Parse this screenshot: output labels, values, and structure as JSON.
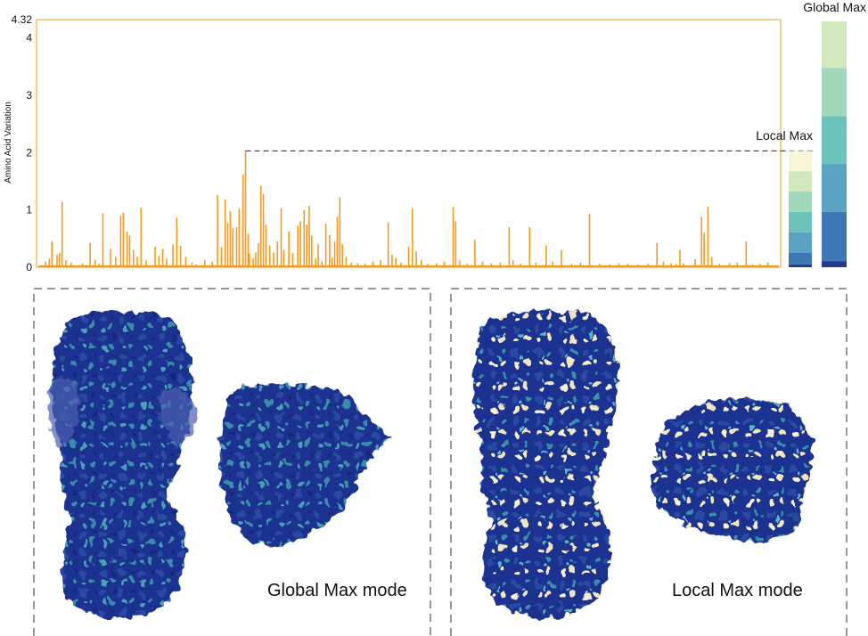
{
  "chart_data": {
    "type": "bar",
    "title": "",
    "xlabel": "",
    "ylabel": "Amino Acid Variation",
    "ylim": [
      0,
      4.32
    ],
    "yticks": [
      "0",
      "1",
      "2",
      "3",
      "4",
      "4.32"
    ],
    "bar_color": "#f39a1f",
    "frame_color": "#f39a1f",
    "local_max_value": 2.03,
    "bars": [
      {
        "x": 5,
        "y": 0.1
      },
      {
        "x": 8,
        "y": 0.15
      },
      {
        "x": 10,
        "y": 0.46
      },
      {
        "x": 14,
        "y": 0.22
      },
      {
        "x": 16,
        "y": 0.25
      },
      {
        "x": 18,
        "y": 1.14
      },
      {
        "x": 21,
        "y": 0.12
      },
      {
        "x": 25,
        "y": 0.08
      },
      {
        "x": 34,
        "y": 0.07
      },
      {
        "x": 40,
        "y": 0.42
      },
      {
        "x": 44,
        "y": 0.13
      },
      {
        "x": 47,
        "y": 0.06
      },
      {
        "x": 50,
        "y": 0.94
      },
      {
        "x": 56,
        "y": 0.32
      },
      {
        "x": 60,
        "y": 0.18
      },
      {
        "x": 64,
        "y": 0.9
      },
      {
        "x": 66,
        "y": 0.95
      },
      {
        "x": 69,
        "y": 0.62
      },
      {
        "x": 71,
        "y": 0.55
      },
      {
        "x": 74,
        "y": 0.3
      },
      {
        "x": 77,
        "y": 0.18
      },
      {
        "x": 80,
        "y": 1.04
      },
      {
        "x": 84,
        "y": 0.12
      },
      {
        "x": 91,
        "y": 0.36
      },
      {
        "x": 94,
        "y": 0.2
      },
      {
        "x": 97,
        "y": 0.32
      },
      {
        "x": 100,
        "y": 0.15
      },
      {
        "x": 105,
        "y": 0.4
      },
      {
        "x": 108,
        "y": 0.86
      },
      {
        "x": 111,
        "y": 0.37
      },
      {
        "x": 115,
        "y": 0.18
      },
      {
        "x": 120,
        "y": 0.08
      },
      {
        "x": 123,
        "y": 0.05
      },
      {
        "x": 130,
        "y": 0.12
      },
      {
        "x": 136,
        "y": 0.1
      },
      {
        "x": 140,
        "y": 1.26
      },
      {
        "x": 143,
        "y": 0.35
      },
      {
        "x": 146,
        "y": 1.18
      },
      {
        "x": 148,
        "y": 0.78
      },
      {
        "x": 150,
        "y": 0.98
      },
      {
        "x": 152,
        "y": 0.68
      },
      {
        "x": 155,
        "y": 0.7
      },
      {
        "x": 157,
        "y": 1.02
      },
      {
        "x": 160,
        "y": 1.62
      },
      {
        "x": 162,
        "y": 2.03
      },
      {
        "x": 164,
        "y": 0.58
      },
      {
        "x": 165,
        "y": 0.24
      },
      {
        "x": 168,
        "y": 0.16
      },
      {
        "x": 170,
        "y": 0.26
      },
      {
        "x": 172,
        "y": 0.42
      },
      {
        "x": 174,
        "y": 1.42
      },
      {
        "x": 176,
        "y": 1.28
      },
      {
        "x": 178,
        "y": 0.74
      },
      {
        "x": 181,
        "y": 0.38
      },
      {
        "x": 184,
        "y": 0.26
      },
      {
        "x": 187,
        "y": 0.45
      },
      {
        "x": 190,
        "y": 1.03
      },
      {
        "x": 192,
        "y": 0.3
      },
      {
        "x": 196,
        "y": 0.62
      },
      {
        "x": 199,
        "y": 0.25
      },
      {
        "x": 203,
        "y": 0.72
      },
      {
        "x": 205,
        "y": 0.8
      },
      {
        "x": 208,
        "y": 1.0
      },
      {
        "x": 210,
        "y": 0.74
      },
      {
        "x": 212,
        "y": 1.07
      },
      {
        "x": 214,
        "y": 0.55
      },
      {
        "x": 217,
        "y": 0.15
      },
      {
        "x": 219,
        "y": 0.4
      },
      {
        "x": 222,
        "y": 0.1
      },
      {
        "x": 225,
        "y": 0.76
      },
      {
        "x": 228,
        "y": 0.56
      },
      {
        "x": 230,
        "y": 0.16
      },
      {
        "x": 232,
        "y": 0.45
      },
      {
        "x": 234,
        "y": 0.88
      },
      {
        "x": 236,
        "y": 1.22
      },
      {
        "x": 238,
        "y": 0.4
      },
      {
        "x": 241,
        "y": 0.18
      },
      {
        "x": 245,
        "y": 0.08
      },
      {
        "x": 250,
        "y": 0.07
      },
      {
        "x": 256,
        "y": 0.06
      },
      {
        "x": 262,
        "y": 0.1
      },
      {
        "x": 268,
        "y": 0.12
      },
      {
        "x": 274,
        "y": 0.78
      },
      {
        "x": 277,
        "y": 0.22
      },
      {
        "x": 280,
        "y": 0.16
      },
      {
        "x": 284,
        "y": 0.08
      },
      {
        "x": 290,
        "y": 0.36
      },
      {
        "x": 293,
        "y": 1.03
      },
      {
        "x": 296,
        "y": 0.28
      },
      {
        "x": 300,
        "y": 0.12
      },
      {
        "x": 305,
        "y": 0.06
      },
      {
        "x": 312,
        "y": 0.07
      },
      {
        "x": 318,
        "y": 0.1
      },
      {
        "x": 325,
        "y": 1.05
      },
      {
        "x": 327,
        "y": 0.8
      },
      {
        "x": 330,
        "y": 0.12
      },
      {
        "x": 336,
        "y": 0.06
      },
      {
        "x": 342,
        "y": 0.48
      },
      {
        "x": 348,
        "y": 0.1
      },
      {
        "x": 355,
        "y": 0.07
      },
      {
        "x": 362,
        "y": 0.08
      },
      {
        "x": 369,
        "y": 0.7
      },
      {
        "x": 372,
        "y": 0.12
      },
      {
        "x": 378,
        "y": 0.06
      },
      {
        "x": 385,
        "y": 0.7
      },
      {
        "x": 390,
        "y": 0.08
      },
      {
        "x": 398,
        "y": 0.38
      },
      {
        "x": 403,
        "y": 0.1
      },
      {
        "x": 410,
        "y": 0.3
      },
      {
        "x": 418,
        "y": 0.06
      },
      {
        "x": 425,
        "y": 0.08
      },
      {
        "x": 432,
        "y": 0.93
      },
      {
        "x": 440,
        "y": 0.06
      },
      {
        "x": 448,
        "y": 0.05
      },
      {
        "x": 455,
        "y": 0.07
      },
      {
        "x": 462,
        "y": 0.06
      },
      {
        "x": 470,
        "y": 0.05
      },
      {
        "x": 478,
        "y": 0.06
      },
      {
        "x": 485,
        "y": 0.42
      },
      {
        "x": 490,
        "y": 0.1
      },
      {
        "x": 496,
        "y": 0.07
      },
      {
        "x": 500,
        "y": 0.06
      },
      {
        "x": 503,
        "y": 0.3
      },
      {
        "x": 506,
        "y": 0.07
      },
      {
        "x": 515,
        "y": 0.14
      },
      {
        "x": 520,
        "y": 0.88
      },
      {
        "x": 522,
        "y": 0.6
      },
      {
        "x": 525,
        "y": 1.06
      },
      {
        "x": 528,
        "y": 0.18
      },
      {
        "x": 534,
        "y": 0.06
      },
      {
        "x": 542,
        "y": 0.07
      },
      {
        "x": 548,
        "y": 0.08
      },
      {
        "x": 555,
        "y": 0.45
      },
      {
        "x": 560,
        "y": 0.05
      },
      {
        "x": 566,
        "y": 0.06
      },
      {
        "x": 572,
        "y": 0.08
      }
    ],
    "colorbars": [
      {
        "label": "Local Max",
        "bands": [
          "#243c8f",
          "#3f77b6",
          "#5aa2c2",
          "#6bc3bb",
          "#a1d7bb",
          "#d1e8bf",
          "#f8f8d8"
        ],
        "fractions": [
          0.025,
          0.1,
          0.175,
          0.175,
          0.175,
          0.175,
          0.175
        ]
      },
      {
        "label": "Global Max",
        "bands": [
          "#243c8f",
          "#3f77b6",
          "#5aa2c2",
          "#6bc3bb",
          "#a1d7bb",
          "#d1e8bf",
          "#f8f8d8"
        ],
        "fractions": [
          0.025,
          0.2,
          0.195,
          0.195,
          0.195,
          0.19,
          0.0
        ]
      }
    ]
  },
  "panels": [
    {
      "caption": "Global Max mode"
    },
    {
      "caption": "Local Max mode"
    }
  ],
  "colors": {
    "surface_dark": "#1d2f8a",
    "surface_mid": "#2a4a9c",
    "surface_teal": "#3b8fae",
    "surface_light": "#f3ecc8",
    "dash": "#333333"
  }
}
